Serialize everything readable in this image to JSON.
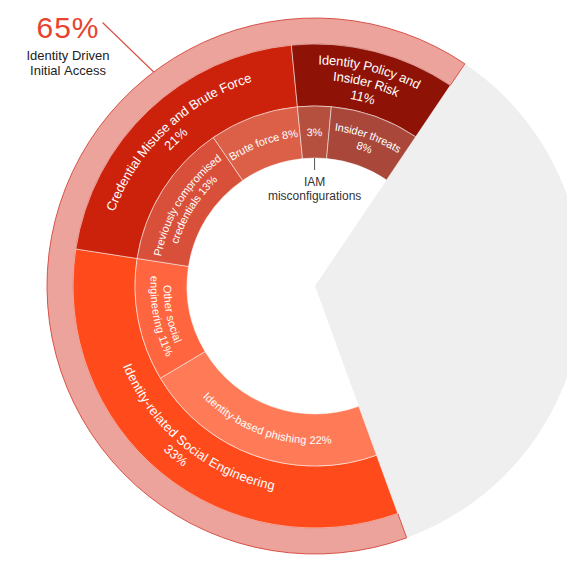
{
  "chart_data": {
    "type": "sunburst",
    "total": {
      "name": "Identity Driven Initial Access",
      "value": 65,
      "value_label": "65%",
      "color": "#eba39b"
    },
    "xlim": [
      0,
      100
    ],
    "categories": [
      "Identity-related Social Engineering",
      "Credential Misuse and Brute Force",
      "Identity Policy and Insider Risk"
    ],
    "values": [
      33,
      21,
      11
    ],
    "value_labels": [
      "33%",
      "21%",
      "11%"
    ],
    "colors": [
      "#ff4a1c",
      "#cc220c",
      "#8e1206"
    ],
    "data_labels": true,
    "children": [
      {
        "categories": [
          "Identity-based phishing",
          "Other social engineering"
        ],
        "values": [
          22,
          11
        ],
        "value_labels": [
          "22%",
          "11%"
        ],
        "colors": [
          "#ff7b58",
          "#ff6640"
        ]
      },
      {
        "categories": [
          "Previously compromised credentials",
          "Brute force"
        ],
        "values": [
          13,
          8
        ],
        "value_labels": [
          "13%",
          "8%"
        ],
        "colors": [
          "#d9503a",
          "#dc5f48"
        ]
      },
      {
        "categories": [
          "IAM misconfigurations",
          "Insider threats"
        ],
        "values": [
          3,
          8
        ],
        "value_labels": [
          "3%",
          "8%"
        ],
        "colors": [
          "#b5503f",
          "#a8473a"
        ]
      }
    ]
  }
}
